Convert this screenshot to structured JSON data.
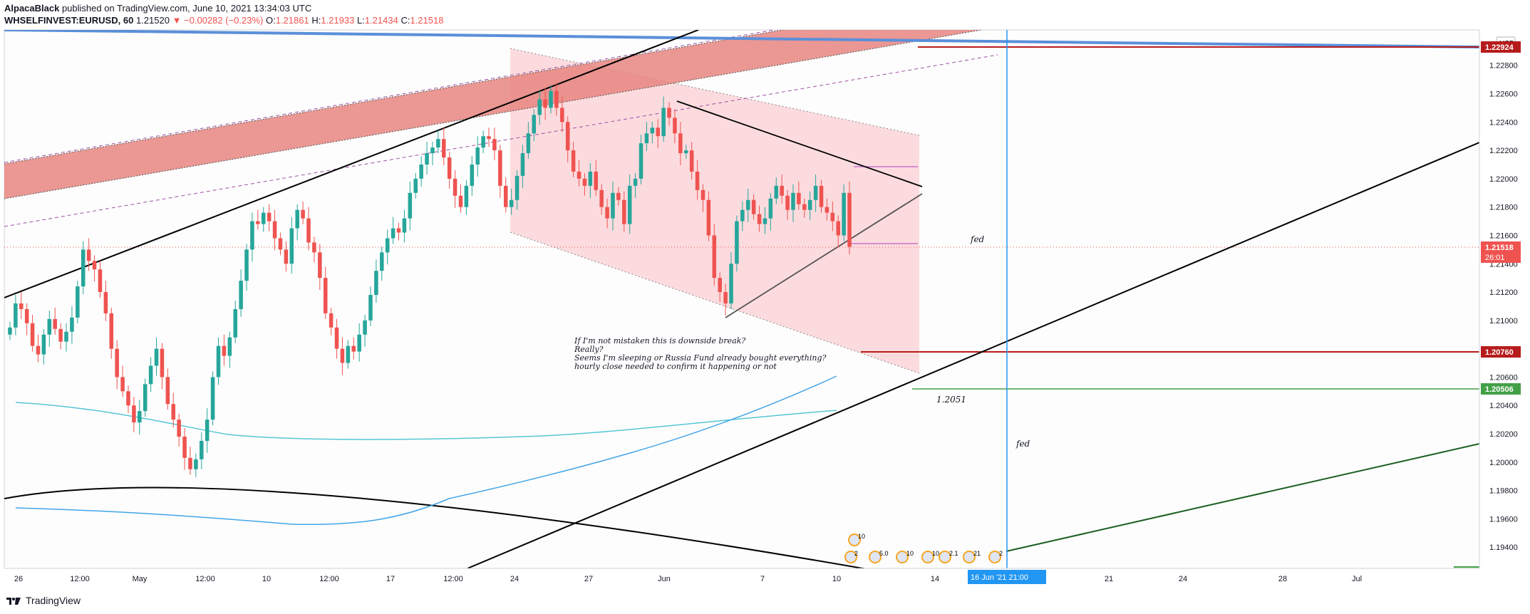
{
  "header": {
    "author": "AlpacaBlack",
    "published": "published on TradingView.com, June 10, 2021 13:34:03 UTC",
    "symbol": "WHSELFINVEST:EURUSD, 60",
    "last": "1.21520",
    "change": "▼ −0.00282 (−0.23%)",
    "o_label": "O:",
    "o": "1.21861",
    "h_label": "H:",
    "h": "1.21933",
    "l_label": "L:",
    "l": "1.21434",
    "c_label": "C:",
    "c": "1.21518"
  },
  "footer": {
    "brand": "TradingView"
  },
  "chart_data": {
    "type": "line",
    "currency": "USD",
    "y_ticks": [
      "1.22800",
      "1.22600",
      "1.22400",
      "1.22200",
      "1.22000",
      "1.21800",
      "1.21600",
      "1.21400",
      "1.21200",
      "1.21000",
      "1.20800",
      "1.20600",
      "1.20400",
      "1.20200",
      "1.20000",
      "1.19800",
      "1.19600",
      "1.19400"
    ],
    "y_tick_values": [
      1.228,
      1.226,
      1.224,
      1.222,
      1.22,
      1.218,
      1.216,
      1.214,
      1.212,
      1.21,
      1.208,
      1.206,
      1.204,
      1.202,
      1.2,
      1.198,
      1.196,
      1.194
    ],
    "ylim": [
      1.1925,
      1.2305
    ],
    "x_ticks": [
      "26",
      "12:00",
      "May",
      "12:00",
      "10",
      "12:00",
      "17",
      "12:00",
      "24",
      "27",
      "Jun",
      "7",
      "10",
      "14",
      "21",
      "24",
      "28",
      "Jul"
    ],
    "price_labels": {
      "top": "1.22924",
      "current": "1.21518",
      "countdown": "26:01",
      "red_level": "1.20760",
      "green_level": "1.20506"
    },
    "levels": {
      "red": 1.2076,
      "green": 1.20506,
      "top_red": 1.22924,
      "current": 1.21518
    },
    "crosshair_label": "16 Jun '21   21:00",
    "annotations": [
      "If I'm not mistaken this is downside break?",
      "Really?",
      "Seems I'm sleeping or Russia Fund already bought everything?",
      "hourly close needed to confirm it happening or not"
    ],
    "labels": {
      "fed1": "fed",
      "fed2": "fed",
      "level": "1.2051"
    },
    "event_badges": [
      "10",
      "2",
      "5.0",
      "10",
      "10",
      "2.1",
      "21",
      "2"
    ],
    "colors": {
      "up": "#26a69a",
      "down": "#ef5350",
      "channel": "#e57373",
      "wedge": "#f8c8cc",
      "blue_line": "#5b8fd9",
      "ma1": "#56c6d6",
      "ma2": "#42a5e8",
      "trend": "#000000",
      "green_line": "#1b5e20"
    },
    "candles_close": [
      1.2095,
      1.2112,
      1.2108,
      1.2098,
      1.2082,
      1.2076,
      1.209,
      1.2101,
      1.2094,
      1.2085,
      1.2092,
      1.2102,
      1.2124,
      1.215,
      1.2142,
      1.2136,
      1.212,
      1.2105,
      1.208,
      1.206,
      1.205,
      1.204,
      1.2028,
      1.2036,
      1.2055,
      1.2068,
      1.208,
      1.206,
      1.2041,
      1.203,
      1.2018,
      1.2003,
      1.1995,
      1.2002,
      1.2015,
      1.203,
      1.206,
      1.2082,
      1.2075,
      1.2088,
      1.2108,
      1.2128,
      1.215,
      1.217,
      1.2168,
      1.2176,
      1.217,
      1.2158,
      1.215,
      1.214,
      1.2165,
      1.2178,
      1.2172,
      1.2155,
      1.2148,
      1.213,
      1.2105,
      1.2095,
      1.208,
      1.207,
      1.2082,
      1.2078,
      1.209,
      1.21,
      1.2118,
      1.2135,
      1.2148,
      1.2158,
      1.2165,
      1.2162,
      1.2172,
      1.219,
      1.22,
      1.221,
      1.2218,
      1.2222,
      1.2228,
      1.2215,
      1.22,
      1.2188,
      1.218,
      1.2195,
      1.221,
      1.2222,
      1.223,
      1.2228,
      1.222,
      1.2195,
      1.218,
      1.2185,
      1.2202,
      1.2218,
      1.2232,
      1.2245,
      1.2256,
      1.225,
      1.2262,
      1.225,
      1.224,
      1.222,
      1.2205,
      1.22,
      1.2195,
      1.2205,
      1.2192,
      1.218,
      1.2172,
      1.219,
      1.2185,
      1.2168,
      1.2195,
      1.22,
      1.2225,
      1.2232,
      1.2236,
      1.223,
      1.225,
      1.2243,
      1.2232,
      1.2218,
      1.222,
      1.2205,
      1.2192,
      1.2185,
      1.216,
      1.213,
      1.212,
      1.2112,
      1.214,
      1.217,
      1.2178,
      1.2185,
      1.2175,
      1.2168,
      1.2172,
      1.2186,
      1.2195,
      1.2188,
      1.2178,
      1.219,
      1.2182,
      1.2178,
      1.2185,
      1.2195,
      1.218,
      1.2176,
      1.217,
      1.216,
      1.219,
      1.2152
    ]
  }
}
